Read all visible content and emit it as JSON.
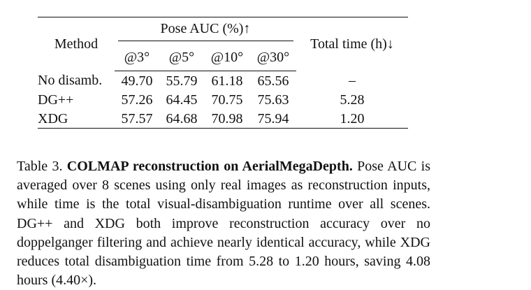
{
  "table": {
    "header": {
      "method": "Method",
      "group": "Pose AUC (%)↑",
      "subcols": [
        "@3°",
        "@5°",
        "@10°",
        "@30°"
      ],
      "time": "Total time (h)↓"
    },
    "rows": [
      {
        "method": "No disamb.",
        "v3": "49.70",
        "v5": "55.79",
        "v10": "61.18",
        "v30": "65.56",
        "time": "–"
      },
      {
        "method": "DG++",
        "v3": "57.26",
        "v5": "64.45",
        "v10": "70.75",
        "v30": "75.63",
        "time": "5.28"
      },
      {
        "method": "XDG",
        "v3": "57.57",
        "v5": "64.68",
        "v10": "70.98",
        "v30": "75.94",
        "time": "1.20"
      }
    ]
  },
  "caption": {
    "label": "Table 3.",
    "title": "COLMAP reconstruction on AerialMegaDepth.",
    "body": "Pose AUC is averaged over 8 scenes using only real images as reconstruction inputs, while time is the total visual-disambiguation runtime over all scenes. DG++ and XDG both improve reconstruction accuracy over no doppelganger filtering and achieve nearly identical accuracy, while XDG reduces total disambiguation time from 5.28 to 1.20 hours, saving 4.08 hours (4.40×)."
  }
}
